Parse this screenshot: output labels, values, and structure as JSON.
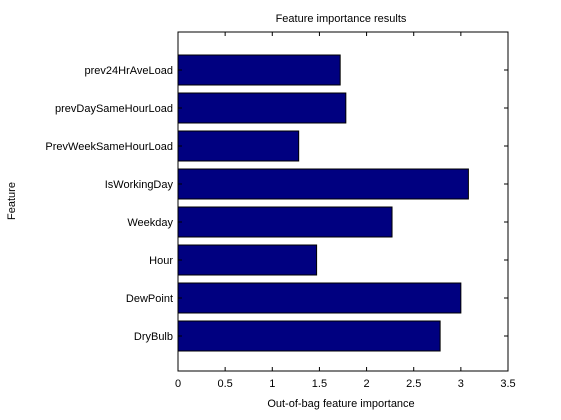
{
  "chart_data": {
    "type": "bar",
    "orientation": "horizontal",
    "title": "Feature importance results",
    "xlabel": "Out-of-bag feature importance",
    "ylabel": "Feature",
    "categories": [
      "prev24HrAveLoad",
      "prevDaySameHourLoad",
      "PrevWeekSameHourLoad",
      "IsWorkingDay",
      "Weekday",
      "Hour",
      "DewPoint",
      "DryBulb"
    ],
    "values": [
      1.72,
      1.78,
      1.28,
      3.08,
      2.27,
      1.47,
      3.0,
      2.78
    ],
    "xlim": [
      0,
      3.5
    ],
    "xticks": [
      "0",
      "0.5",
      "1",
      "1.5",
      "2",
      "2.5",
      "3",
      "3.5"
    ],
    "bar_color": "#000080",
    "grid": false
  }
}
